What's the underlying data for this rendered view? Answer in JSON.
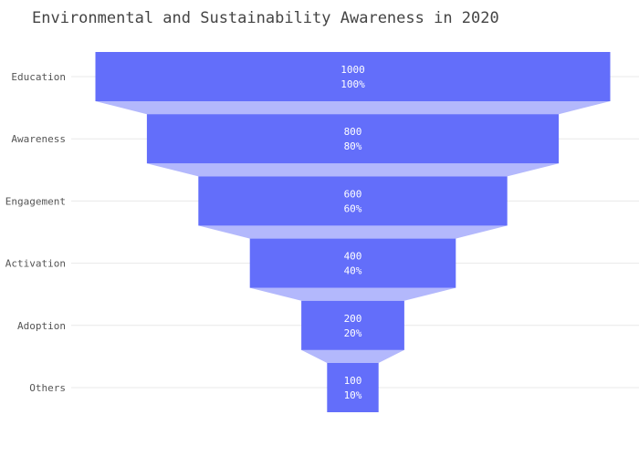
{
  "chart_data": {
    "type": "funnel",
    "title": "Environmental and Sustainability Awareness in 2020",
    "categories": [
      "Education",
      "Awareness",
      "Engagement",
      "Activation",
      "Adoption",
      "Others"
    ],
    "values": [
      1000,
      800,
      600,
      400,
      200,
      100
    ],
    "percent_labels": [
      "100%",
      "80%",
      "60%",
      "40%",
      "20%",
      "10%"
    ],
    "xlabel": "",
    "ylabel": "",
    "grid": true,
    "colors": {
      "bar": "#636efa",
      "connector": "#b3b8fc"
    }
  }
}
